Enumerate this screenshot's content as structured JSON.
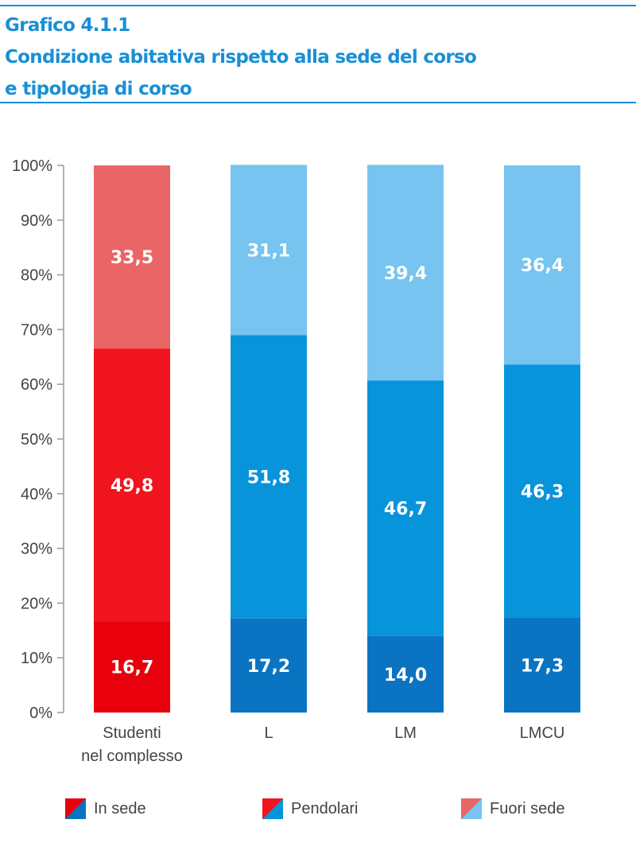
{
  "title": {
    "line1": "Grafico 4.1.1",
    "line2": "Condizione abitativa rispetto alla sede del corso",
    "line3": "e tipologia di corso"
  },
  "chart_data": {
    "type": "bar",
    "stacked": true,
    "categories": [
      "Studenti\nnel complesso",
      "L",
      "LM",
      "LMCU"
    ],
    "series": [
      {
        "name": "In sede",
        "values": [
          16.7,
          17.2,
          14.0,
          17.3
        ],
        "colors": [
          "#e8000d",
          "#0a74c2",
          "#0a74c2",
          "#0a74c2"
        ]
      },
      {
        "name": "Pendolari",
        "values": [
          49.8,
          51.8,
          46.7,
          46.3
        ],
        "colors": [
          "#f0141e",
          "#0894db",
          "#0894db",
          "#0894db"
        ]
      },
      {
        "name": "Fuori sede",
        "values": [
          33.5,
          31.1,
          39.4,
          36.4
        ],
        "colors": [
          "#ea6565",
          "#76c4ef",
          "#76c4ef",
          "#76c4ef"
        ]
      }
    ],
    "value_labels": [
      [
        "16,7",
        "49,8",
        "33,5"
      ],
      [
        "17,2",
        "51,8",
        "31,1"
      ],
      [
        "14,0",
        "46,7",
        "39,4"
      ],
      [
        "17,3",
        "46,3",
        "36,4"
      ]
    ],
    "yticks": [
      "0%",
      "10%",
      "20%",
      "30%",
      "40%",
      "50%",
      "60%",
      "70%",
      "80%",
      "90%",
      "100%"
    ],
    "ylim": [
      0,
      100
    ],
    "legend_position": "bottom"
  },
  "legend": [
    {
      "label": "In sede",
      "color_a": "#e8000d",
      "color_b": "#0a74c2"
    },
    {
      "label": "Pendolari",
      "color_a": "#f0141e",
      "color_b": "#0894db"
    },
    {
      "label": "Fuori sede",
      "color_a": "#ea6565",
      "color_b": "#76c4ef"
    }
  ]
}
